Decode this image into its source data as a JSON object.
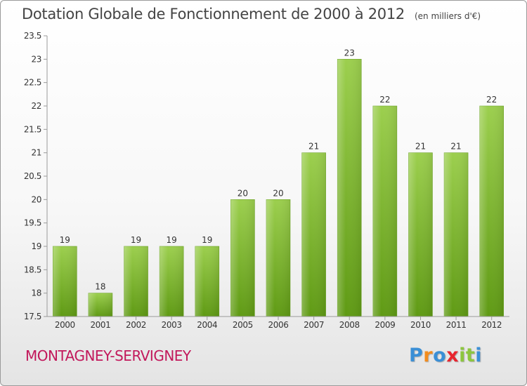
{
  "header": {
    "title": "Dotation Globale de Fonctionnement de 2000 à 2012",
    "unit": "(en milliers d'€)"
  },
  "footer": {
    "commune": "MONTAGNEY-SERVIGNEY",
    "logo_letters": [
      "P",
      "r",
      "o",
      "x",
      "i",
      "t",
      "i"
    ],
    "logo_colors": [
      "#3a8fd6",
      "#f28c1e",
      "#3a8fd6",
      "#e8242e",
      "#8cc63f",
      "#8cc63f",
      "#3a8fd6"
    ]
  },
  "chart_data": {
    "type": "bar",
    "title": "Dotation Globale de Fonctionnement de 2000 à 2012",
    "subtitle": "(en milliers d'€)",
    "xlabel": "",
    "ylabel": "",
    "categories": [
      "2000",
      "2001",
      "2002",
      "2003",
      "2004",
      "2005",
      "2006",
      "2007",
      "2008",
      "2009",
      "2010",
      "2011",
      "2012"
    ],
    "values": [
      19,
      18,
      19,
      19,
      19,
      20,
      20,
      21,
      23,
      22,
      21,
      21,
      22
    ],
    "data_labels": [
      "19",
      "18",
      "19",
      "19",
      "19",
      "20",
      "20",
      "21",
      "23",
      "22",
      "21",
      "21",
      "22"
    ],
    "ylim": [
      17.5,
      23.5
    ],
    "yticks": [
      17.5,
      18,
      18.5,
      19,
      19.5,
      20,
      20.5,
      21,
      21.5,
      22,
      22.5,
      23,
      23.5
    ],
    "ytick_labels": [
      "17.5",
      "18",
      "18.5",
      "19",
      "19.5",
      "20",
      "20.5",
      "21",
      "21.5",
      "22",
      "22.5",
      "23",
      "23.5"
    ],
    "grid": false,
    "bar_color_top": "#9ccf4e",
    "bar_color_bottom": "#5f9a14"
  }
}
